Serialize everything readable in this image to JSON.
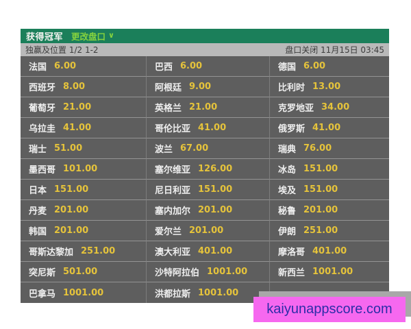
{
  "header": {
    "title": "获得冠军",
    "change_market_label": "更改盘口",
    "chevron_icon": "∨",
    "background": "#1b7f5a",
    "accent_color": "#86d33e"
  },
  "subbar": {
    "left_label": "独赢及位置 1/2 1-2",
    "right_label": "盘口关闭 11月15日 03:45",
    "background": "#b9b9b9"
  },
  "odds_table": {
    "row_background": "#5e5e5e",
    "team_color": "#efefef",
    "odds_color": "#e5c33b",
    "rows": [
      [
        {
          "name": "法国",
          "odds": "6.00"
        },
        {
          "name": "巴西",
          "odds": "6.00"
        },
        {
          "name": "德国",
          "odds": "6.00"
        }
      ],
      [
        {
          "name": "西班牙",
          "odds": "8.00"
        },
        {
          "name": "阿根廷",
          "odds": "9.00"
        },
        {
          "name": "比利时",
          "odds": "13.00"
        }
      ],
      [
        {
          "name": "葡萄牙",
          "odds": "21.00"
        },
        {
          "name": "英格兰",
          "odds": "21.00"
        },
        {
          "name": "克罗地亚",
          "odds": "34.00"
        }
      ],
      [
        {
          "name": "乌拉圭",
          "odds": "41.00"
        },
        {
          "name": "哥伦比亚",
          "odds": "41.00"
        },
        {
          "name": "俄罗斯",
          "odds": "41.00"
        }
      ],
      [
        {
          "name": "瑞士",
          "odds": "51.00"
        },
        {
          "name": "波兰",
          "odds": "67.00"
        },
        {
          "name": "瑞典",
          "odds": "76.00"
        }
      ],
      [
        {
          "name": "墨西哥",
          "odds": "101.00"
        },
        {
          "name": "塞尔维亚",
          "odds": "126.00"
        },
        {
          "name": "冰岛",
          "odds": "151.00"
        }
      ],
      [
        {
          "name": "日本",
          "odds": "151.00"
        },
        {
          "name": "尼日利亚",
          "odds": "151.00"
        },
        {
          "name": "埃及",
          "odds": "151.00"
        }
      ],
      [
        {
          "name": "丹麦",
          "odds": "201.00"
        },
        {
          "name": "塞内加尔",
          "odds": "201.00"
        },
        {
          "name": "秘鲁",
          "odds": "201.00"
        }
      ],
      [
        {
          "name": "韩国",
          "odds": "201.00"
        },
        {
          "name": "爱尔兰",
          "odds": "201.00"
        },
        {
          "name": "伊朗",
          "odds": "251.00"
        }
      ],
      [
        {
          "name": "哥斯达黎加",
          "odds": "251.00"
        },
        {
          "name": "澳大利亚",
          "odds": "401.00"
        },
        {
          "name": "摩洛哥",
          "odds": "401.00"
        }
      ],
      [
        {
          "name": "突尼斯",
          "odds": "501.00"
        },
        {
          "name": "沙特阿拉伯",
          "odds": "1001.00"
        },
        {
          "name": "新西兰",
          "odds": "1001.00"
        }
      ],
      [
        {
          "name": "巴拿马",
          "odds": "1001.00"
        },
        {
          "name": "洪都拉斯",
          "odds": "1001.00"
        },
        null
      ]
    ]
  },
  "banner": {
    "text": "kaiyunappscore.com",
    "background": "#f668ef",
    "text_color": "#2d2da8"
  }
}
